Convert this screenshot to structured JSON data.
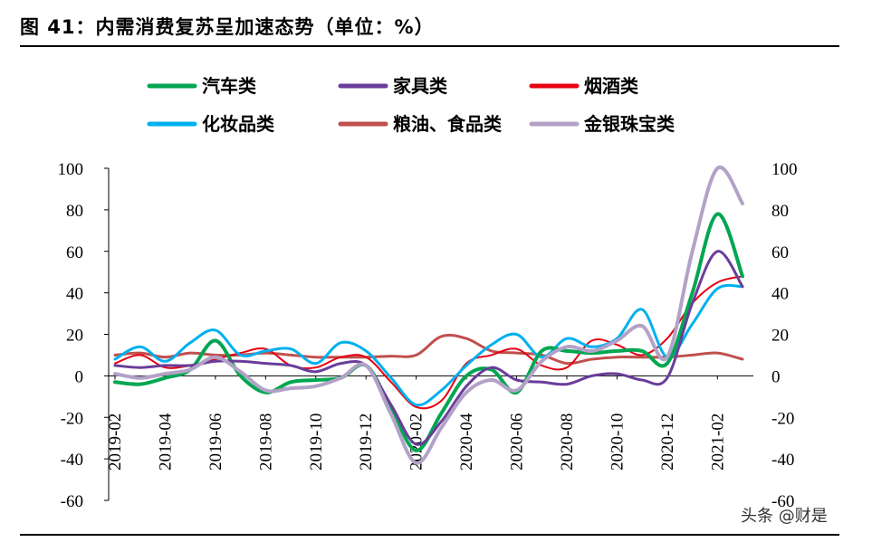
{
  "title": "图 41：内需消费复苏呈加速态势（单位：%）",
  "watermark": "头条 @财是",
  "chart_data": {
    "type": "line",
    "title": "图 41：内需消费复苏呈加速态势（单位：%）",
    "unit": "%",
    "ylim": [
      -60,
      100
    ],
    "yticks": [
      -60,
      -40,
      -20,
      0,
      20,
      40,
      60,
      80,
      100
    ],
    "y2lim": [
      -60,
      100
    ],
    "y2ticks": [
      -60,
      -40,
      -20,
      0,
      20,
      40,
      60,
      80,
      100
    ],
    "x": [
      "2019-02",
      "2019-03",
      "2019-04",
      "2019-05",
      "2019-06",
      "2019-07",
      "2019-08",
      "2019-09",
      "2019-10",
      "2019-11",
      "2019-12",
      "2020-01",
      "2020-02",
      "2020-03",
      "2020-04",
      "2020-05",
      "2020-06",
      "2020-07",
      "2020-08",
      "2020-09",
      "2020-10",
      "2020-11",
      "2020-12",
      "2021-01",
      "2021-02",
      "2021-03"
    ],
    "xtick_labels": [
      "2019-02",
      "2019-04",
      "2019-06",
      "2019-08",
      "2019-10",
      "2019-12",
      "2020-02",
      "2020-04",
      "2020-06",
      "2020-08",
      "2020-10",
      "2020-12",
      "2021-02"
    ],
    "grid": false,
    "legend_position": "top",
    "series": [
      {
        "name": "汽车类",
        "color": "#00a651",
        "width": 4,
        "values": [
          -3,
          -4,
          -1,
          3,
          17,
          0,
          -8,
          -3,
          -2,
          -1,
          5,
          null,
          -36,
          -18,
          0,
          3,
          -8,
          12,
          12,
          11,
          12,
          12,
          6,
          40,
          78,
          48
        ]
      },
      {
        "name": "家具类",
        "color": "#6a3d9a",
        "width": 3,
        "values": [
          5,
          4,
          5,
          5,
          7,
          7,
          6,
          5,
          2,
          6,
          5,
          null,
          -33,
          -22,
          -5,
          4,
          -2,
          -3,
          -4,
          0,
          1,
          -2,
          -1,
          35,
          60,
          43
        ]
      },
      {
        "name": "烟酒类",
        "color": "#e60012",
        "width": 2,
        "values": [
          6,
          10,
          4,
          5,
          8,
          11,
          13,
          5,
          4,
          9,
          9,
          null,
          -15,
          -12,
          6,
          10,
          13,
          5,
          4,
          17,
          15,
          10,
          18,
          35,
          45,
          48
        ]
      },
      {
        "name": "化妆品类",
        "color": "#00b0f0",
        "width": 3,
        "values": [
          8,
          14,
          7,
          16,
          22,
          10,
          12,
          13,
          6,
          16,
          12,
          null,
          -14,
          -7,
          5,
          15,
          20,
          9,
          18,
          14,
          18,
          32,
          9,
          25,
          42,
          43
        ]
      },
      {
        "name": "粮油、食品类",
        "color": "#c0504d",
        "width": 3,
        "values": [
          10,
          11,
          9,
          11,
          10,
          10,
          11,
          10,
          9,
          9,
          9,
          null,
          10,
          19,
          18,
          12,
          11,
          10,
          6,
          8,
          9,
          9,
          9,
          10,
          11,
          8
        ]
      },
      {
        "name": "金银珠宝类",
        "color": "#b3a2c7",
        "width": 4,
        "values": [
          1,
          -1,
          1,
          3,
          9,
          2,
          -7,
          -6,
          -5,
          -1,
          5,
          null,
          -42,
          -25,
          -8,
          -2,
          -7,
          7,
          14,
          12,
          17,
          24,
          9,
          60,
          100,
          83
        ]
      }
    ]
  }
}
